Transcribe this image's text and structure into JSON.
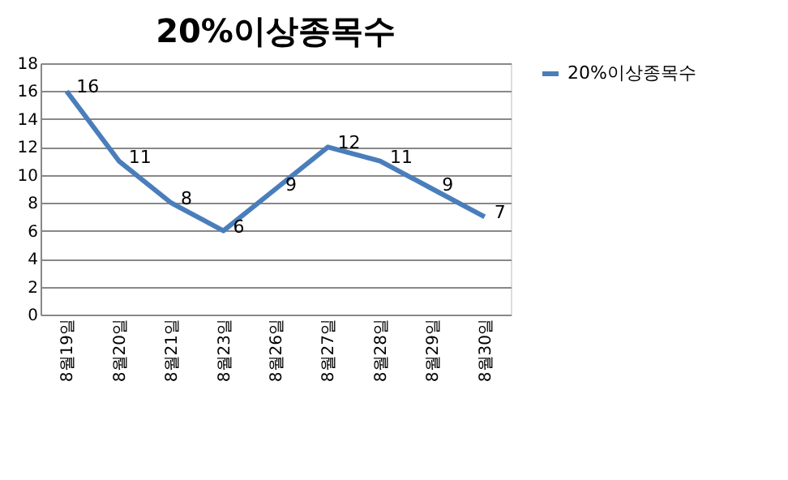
{
  "chart_data": {
    "type": "line",
    "title": "20%이상종목수",
    "categories": [
      "8월19일",
      "8월20일",
      "8월21일",
      "8월23일",
      "8월26일",
      "8월27일",
      "8월28일",
      "8월29일",
      "8월30일"
    ],
    "series": [
      {
        "name": "20%이상종목수",
        "color": "#4a7ebb",
        "values": [
          16,
          11,
          8,
          6,
          9,
          12,
          11,
          9,
          7
        ]
      }
    ],
    "ylim": [
      0,
      18
    ],
    "yticks": [
      0,
      2,
      4,
      6,
      8,
      10,
      12,
      14,
      16,
      18
    ],
    "grid": "y",
    "legend": "right",
    "data_labels": true,
    "marker": "none",
    "line_style": "solid"
  }
}
